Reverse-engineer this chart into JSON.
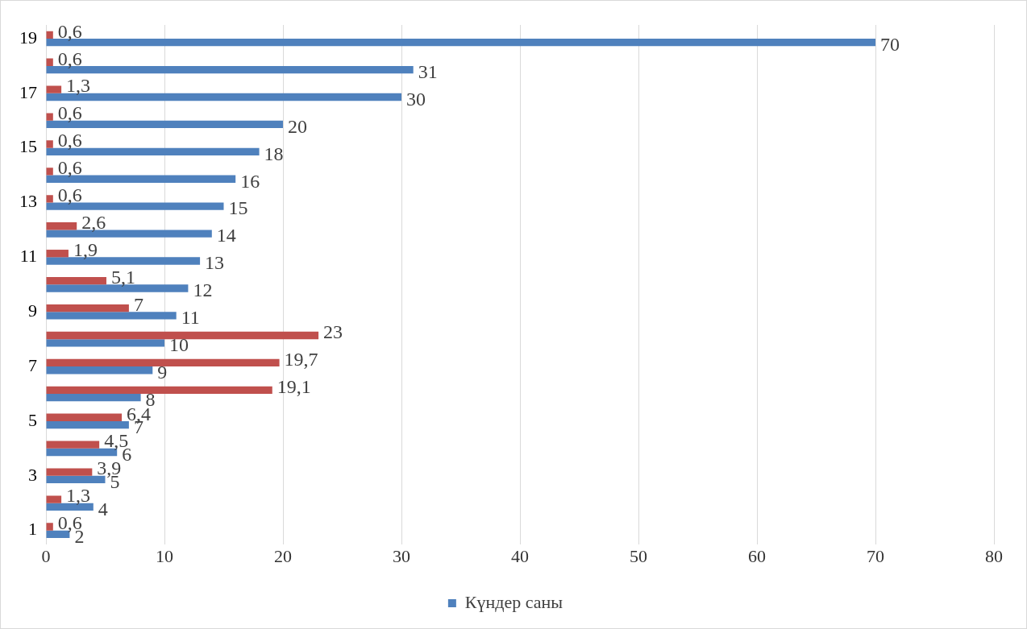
{
  "chart_data": {
    "type": "bar",
    "orientation": "horizontal",
    "categories": [
      "19",
      null,
      "17",
      null,
      "15",
      null,
      "13",
      null,
      "11",
      null,
      "9",
      null,
      "7",
      null,
      "5",
      null,
      "3",
      null,
      "1"
    ],
    "series": [
      {
        "color": "#c0504d",
        "values": [
          0.6,
          0.6,
          1.3,
          0.6,
          0.6,
          0.6,
          0.6,
          2.6,
          1.9,
          5.1,
          7,
          23,
          19.7,
          19.1,
          6.4,
          4.5,
          3.9,
          1.3,
          0.6
        ],
        "value_labels": [
          "0,6",
          "0,6",
          "1,3",
          "0,6",
          "0,6",
          "0,6",
          "0,6",
          "2,6",
          "1,9",
          "5,1",
          "7",
          "23",
          "19,7",
          "19,1",
          "6,4",
          "4,5",
          "3,9",
          "1,3",
          "0,6"
        ]
      },
      {
        "name": "Күндер саны",
        "color": "#4f81bd",
        "values": [
          70,
          31,
          30,
          20,
          18,
          16,
          15,
          14,
          13,
          12,
          11,
          10,
          9,
          8,
          7,
          6,
          5,
          4,
          2
        ],
        "value_labels": [
          "70",
          "31",
          "30",
          "20",
          "18",
          "16",
          "15",
          "14",
          "13",
          "12",
          "11",
          "10",
          "9",
          "8",
          "7",
          "6",
          "5",
          "4",
          "2"
        ]
      }
    ],
    "xlim": [
      0,
      80
    ],
    "xticks": [
      0,
      10,
      20,
      30,
      40,
      50,
      60,
      70,
      80
    ],
    "grid": "x",
    "legend": "bottom"
  }
}
